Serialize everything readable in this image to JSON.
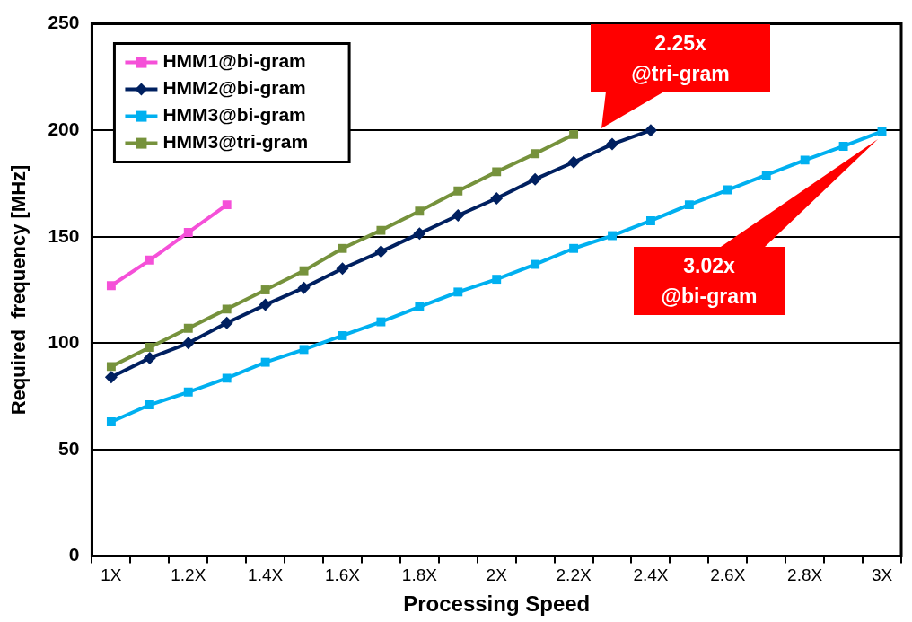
{
  "chart_data": {
    "type": "line",
    "xlabel": "Processing Speed",
    "ylabel": "Required  frequency [MHz]",
    "categories": [
      "1X",
      null,
      "1.2X",
      null,
      "1.4X",
      null,
      "1.6X",
      null,
      "1.8X",
      null,
      "2X",
      null,
      "2.2X",
      null,
      "2.4X",
      null,
      "2.6X",
      null,
      "2.8X",
      null,
      "3X"
    ],
    "series": [
      {
        "name": "HMM1@bi-gram",
        "color": "#f550d8",
        "marker": "square",
        "values": [
          127,
          139,
          152,
          165,
          null,
          null,
          null,
          null,
          null,
          null,
          null,
          null,
          null,
          null,
          null,
          null,
          null,
          null,
          null,
          null,
          null
        ]
      },
      {
        "name": "HMM2@bi-gram",
        "color": "#002060",
        "marker": "diamond",
        "values": [
          84,
          93,
          100,
          109.5,
          118,
          126,
          135,
          143,
          151.5,
          160,
          168,
          177,
          185,
          193.5,
          200,
          null,
          null,
          null,
          null,
          null,
          null
        ]
      },
      {
        "name": "HMM3@bi-gram",
        "color": "#00b0f0",
        "marker": "square",
        "values": [
          63,
          71,
          77,
          83.5,
          91,
          97,
          103.5,
          110,
          117,
          124,
          130,
          137,
          144.5,
          150.5,
          157.5,
          165,
          172,
          179,
          186,
          192.5,
          199.5
        ]
      },
      {
        "name": "HMM3@tri-gram",
        "color": "#76923c",
        "marker": "square",
        "values": [
          89,
          98,
          107,
          116,
          125,
          134,
          144.5,
          153,
          162,
          171.5,
          180.5,
          189,
          198,
          null,
          null,
          null,
          null,
          null,
          null,
          null,
          null
        ]
      }
    ],
    "ylim": [
      0,
      250
    ],
    "yticks": [
      0,
      50,
      100,
      150,
      200,
      250
    ],
    "grid": "y",
    "legend": "top left",
    "line_style": "solid",
    "annotations": [
      "2.25x\n@tri-gram",
      "3.02x\n@bi-gram"
    ]
  }
}
